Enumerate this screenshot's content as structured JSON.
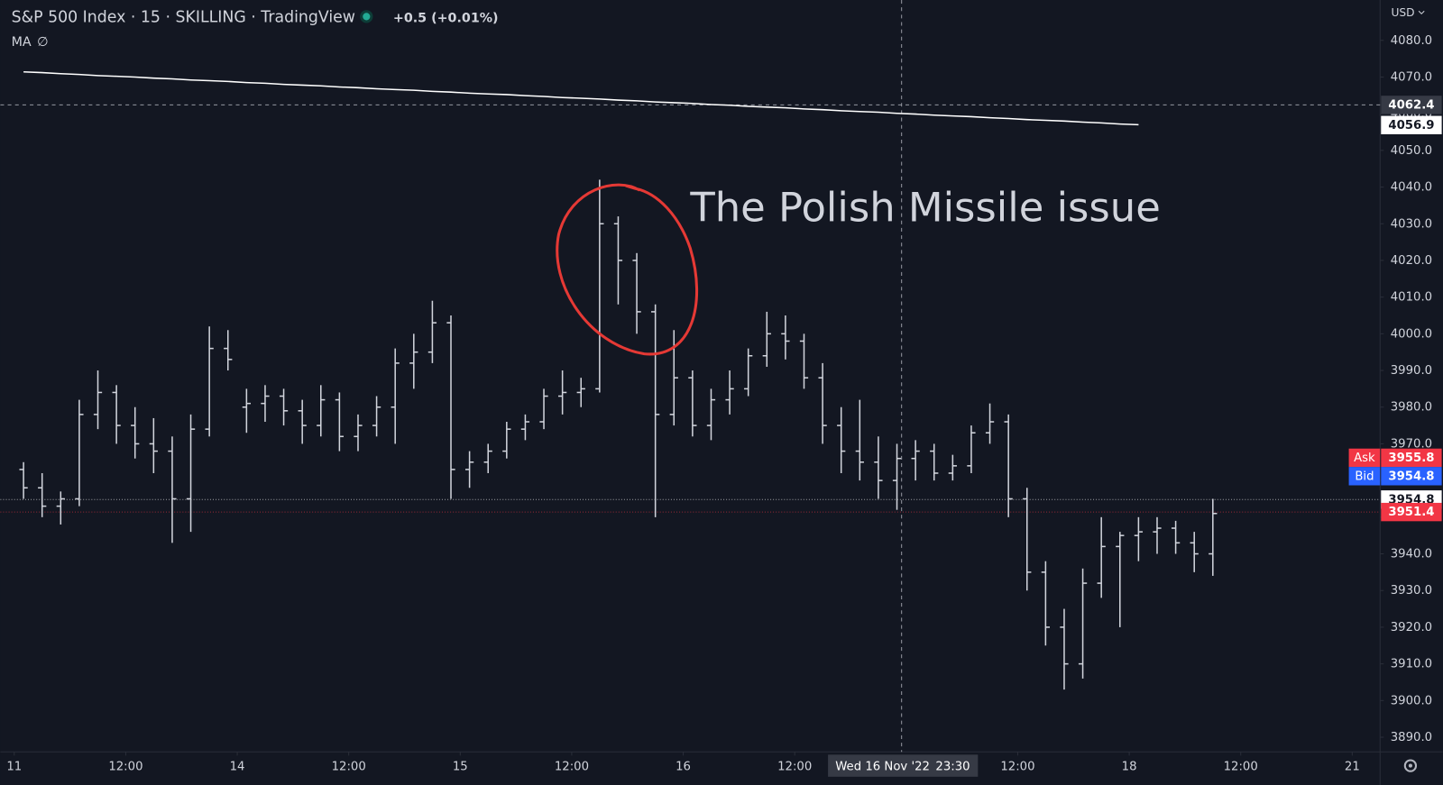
{
  "chart_data": {
    "type": "ohlc",
    "title": "S&P 500 Index · 15 · SKILLING · TradingView",
    "change": "+0.5 (+0.01%)",
    "currency": "USD",
    "annotation": "The Polish Missile issue",
    "color": "#d1d4dc",
    "x": [
      "2022-11-11 00:00",
      "2022-11-11 02:00",
      "2022-11-11 04:00",
      "2022-11-11 06:00",
      "2022-11-11 08:00",
      "2022-11-11 10:00",
      "2022-11-11 12:00",
      "2022-11-11 14:00",
      "2022-11-11 16:00",
      "2022-11-11 18:00",
      "2022-11-11 20:00",
      "2022-11-11 22:00",
      "2022-11-14 00:00",
      "2022-11-14 02:00",
      "2022-11-14 04:00",
      "2022-11-14 06:00",
      "2022-11-14 08:00",
      "2022-11-14 10:00",
      "2022-11-14 12:00",
      "2022-11-14 14:00",
      "2022-11-14 16:00",
      "2022-11-14 18:00",
      "2022-11-14 20:00",
      "2022-11-14 22:00",
      "2022-11-15 00:00",
      "2022-11-15 02:00",
      "2022-11-15 04:00",
      "2022-11-15 06:00",
      "2022-11-15 08:00",
      "2022-11-15 10:00",
      "2022-11-15 12:00",
      "2022-11-15 14:00",
      "2022-11-15 16:00",
      "2022-11-15 18:00",
      "2022-11-15 20:00",
      "2022-11-15 22:00",
      "2022-11-16 00:00",
      "2022-11-16 02:00",
      "2022-11-16 04:00",
      "2022-11-16 06:00",
      "2022-11-16 08:00",
      "2022-11-16 10:00",
      "2022-11-16 12:00",
      "2022-11-16 14:00",
      "2022-11-16 16:00",
      "2022-11-16 18:00",
      "2022-11-16 20:00",
      "2022-11-16 22:00",
      "2022-11-17 00:00",
      "2022-11-17 02:00",
      "2022-11-17 04:00",
      "2022-11-17 06:00",
      "2022-11-17 08:00",
      "2022-11-17 10:00",
      "2022-11-17 12:00",
      "2022-11-17 14:00",
      "2022-11-17 16:00",
      "2022-11-17 18:00",
      "2022-11-17 20:00",
      "2022-11-17 22:00",
      "2022-11-18 00:00",
      "2022-11-18 02:00",
      "2022-11-18 04:00",
      "2022-11-18 06:00",
      "2022-11-18 08:00"
    ],
    "open": [
      3963,
      3958,
      3953,
      3955,
      3978,
      3984,
      3975,
      3970,
      3968,
      3955,
      3974,
      3996,
      3980,
      3981,
      3983,
      3979,
      3975,
      3982,
      3972,
      3975,
      3980,
      3992,
      3995,
      4003,
      3963,
      3965,
      3968,
      3974,
      3976,
      3983,
      3984,
      3985,
      4030,
      4020,
      4006,
      3978,
      3988,
      3975,
      3982,
      3985,
      3994,
      4000,
      3998,
      3988,
      3975,
      3968,
      3965,
      3960,
      3966,
      3968,
      3962,
      3964,
      3973,
      3976,
      3955,
      3935,
      3920,
      3910,
      3932,
      3942,
      3945,
      3946,
      3947,
      3943,
      3940
    ],
    "high": [
      3965,
      3962,
      3957,
      3982,
      3990,
      3986,
      3980,
      3977,
      3972,
      3978,
      4002,
      4001,
      3985,
      3986,
      3985,
      3982,
      3986,
      3984,
      3978,
      3983,
      3996,
      4000,
      4009,
      4005,
      3968,
      3970,
      3976,
      3978,
      3985,
      3990,
      3988,
      4042,
      4032,
      4022,
      4008,
      4001,
      3990,
      3985,
      3990,
      3996,
      4006,
      4005,
      4000,
      3992,
      3980,
      3982,
      3972,
      3970,
      3971,
      3970,
      3967,
      3975,
      3981,
      3978,
      3958,
      3938,
      3925,
      3936,
      3950,
      3946,
      3950,
      3950,
      3949,
      3946,
      3955
    ],
    "low": [
      3955,
      3950,
      3948,
      3953,
      3974,
      3970,
      3966,
      3962,
      3943,
      3946,
      3972,
      3990,
      3973,
      3976,
      3975,
      3970,
      3972,
      3968,
      3968,
      3972,
      3970,
      3985,
      3992,
      3955,
      3958,
      3962,
      3966,
      3971,
      3974,
      3978,
      3980,
      3984,
      4008,
      4000,
      3950,
      3975,
      3972,
      3971,
      3978,
      3983,
      3991,
      3993,
      3985,
      3970,
      3962,
      3960,
      3955,
      3952,
      3960,
      3960,
      3960,
      3962,
      3970,
      3950,
      3930,
      3915,
      3903,
      3906,
      3928,
      3920,
      3938,
      3940,
      3940,
      3935,
      3934
    ],
    "close": [
      3958,
      3953,
      3955,
      3978,
      3984,
      3975,
      3970,
      3968,
      3955,
      3974,
      3996,
      3993,
      3981,
      3983,
      3979,
      3975,
      3982,
      3972,
      3975,
      3980,
      3992,
      3995,
      4003,
      3963,
      3965,
      3968,
      3974,
      3976,
      3983,
      3984,
      3985,
      4030,
      4020,
      4006,
      3978,
      3988,
      3975,
      3982,
      3985,
      3994,
      4000,
      3998,
      3988,
      3975,
      3968,
      3965,
      3960,
      3966,
      3968,
      3962,
      3964,
      3973,
      3976,
      3955,
      3935,
      3920,
      3910,
      3932,
      3942,
      3945,
      3946,
      3947,
      3943,
      3940,
      3951
    ],
    "series": [
      {
        "name": "MA",
        "status": "∅",
        "color": "#ffffff",
        "values": [
          4071.4,
          4071.2,
          4070.9,
          4070.7,
          4070.4,
          4070.2,
          4070.0,
          4069.7,
          4069.5,
          4069.2,
          4069.0,
          4068.8,
          4068.5,
          4068.3,
          4068.0,
          4067.8,
          4067.6,
          4067.3,
          4067.1,
          4066.8,
          4066.6,
          4066.4,
          4066.1,
          4065.9,
          4065.6,
          4065.4,
          4065.2,
          4064.9,
          4064.7,
          4064.4,
          4064.2,
          4064.0,
          4063.7,
          4063.5,
          4063.2,
          4063.0,
          4062.8,
          4062.5,
          4062.3,
          4062.0,
          4061.8,
          4061.6,
          4061.3,
          4061.1,
          4060.8,
          4060.6,
          4060.4,
          4060.1,
          4059.9,
          4059.6,
          4059.4,
          4059.2,
          4058.9,
          4058.7,
          4058.4,
          4058.2,
          4058.0,
          4057.7,
          4057.5,
          4057.2,
          4057.0,
          null,
          null,
          null,
          null
        ]
      }
    ],
    "xlim": [
      "2022-11-10 23:00",
      "2022-11-21 03:00"
    ],
    "xticks": [
      {
        "value": "2022-11-11 00:00",
        "label": "11"
      },
      {
        "value": "2022-11-11 12:00",
        "label": "12:00"
      },
      {
        "value": "2022-11-14 00:00",
        "label": "14"
      },
      {
        "value": "2022-11-14 12:00",
        "label": "12:00"
      },
      {
        "value": "2022-11-15 00:00",
        "label": "15"
      },
      {
        "value": "2022-11-15 12:00",
        "label": "12:00"
      },
      {
        "value": "2022-11-16 00:00",
        "label": "16"
      },
      {
        "value": "2022-11-16 12:00",
        "label": "12:00"
      },
      {
        "value": "2022-11-17 12:00",
        "label": "12:00"
      },
      {
        "value": "2022-11-18 00:00",
        "label": "18"
      },
      {
        "value": "2022-11-18 12:00",
        "label": "12:00"
      },
      {
        "value": "2022-11-21 00:00",
        "label": "21"
      }
    ],
    "ylim": [
      3886.0,
      4091.0
    ],
    "yticks": [
      {
        "value": 3890,
        "label": "3890.0"
      },
      {
        "value": 3900,
        "label": "3900.0"
      },
      {
        "value": 3910,
        "label": "3910.0"
      },
      {
        "value": 3920,
        "label": "3920.0"
      },
      {
        "value": 3930,
        "label": "3930.0"
      },
      {
        "value": 3940,
        "label": "3940.0"
      },
      {
        "value": 3950,
        "label": "3950.0"
      },
      {
        "value": 3960,
        "label": "3960.0"
      },
      {
        "value": 3970,
        "label": "3970.0"
      },
      {
        "value": 3980,
        "label": "3980.0"
      },
      {
        "value": 3990,
        "label": "3990.0"
      },
      {
        "value": 4000,
        "label": "4000.0"
      },
      {
        "value": 4010,
        "label": "4010.0"
      },
      {
        "value": 4020,
        "label": "4020.0"
      },
      {
        "value": 4030,
        "label": "4030.0"
      },
      {
        "value": 4040,
        "label": "4040.0"
      },
      {
        "value": 4050,
        "label": "4050.0"
      },
      {
        "value": 4060,
        "label": "4060.0"
      },
      {
        "value": 4070,
        "label": "4070.0"
      },
      {
        "value": 4080,
        "label": "4080.0"
      }
    ],
    "price_labels": [
      {
        "label": "Ask",
        "value": 3955.8,
        "color": "#f23645"
      },
      {
        "label": "Bid",
        "value": 3954.8,
        "color": "#2962ff"
      }
    ],
    "price_lines": [
      {
        "value": 3954.8,
        "color": "#ffffff"
      },
      {
        "value": 3951.4,
        "color": "#f23645"
      },
      {
        "value": 4056.9,
        "color": "#ffffff"
      }
    ],
    "crosshair": {
      "x": "2022-11-16 23:30",
      "date_label": "Wed 16 Nov '22",
      "time_label": "23:30",
      "price": 4062.4
    }
  }
}
